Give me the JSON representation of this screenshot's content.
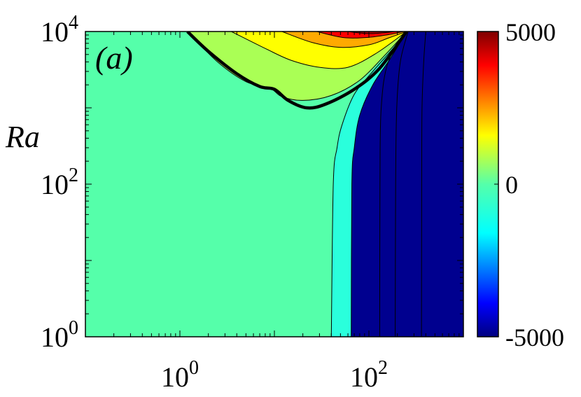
{
  "chart_data": {
    "type": "heatmap",
    "panel_label": "(a)",
    "xlabel": "",
    "ylabel": "Ra",
    "x_scale": "log",
    "y_scale": "log",
    "xlim": [
      0.1,
      1000
    ],
    "ylim": [
      1,
      10000
    ],
    "x_ticks": [
      {
        "value": 1,
        "base": "10",
        "exp": "0"
      },
      {
        "value": 100,
        "base": "10",
        "exp": "2"
      }
    ],
    "y_ticks": [
      {
        "value": 1,
        "base": "10",
        "exp": "0"
      },
      {
        "value": 100,
        "base": "10",
        "exp": "2"
      },
      {
        "value": 10000,
        "base": "10",
        "exp": "4"
      }
    ],
    "colorbar": {
      "colormap": "jet",
      "range": [
        -5000,
        5000
      ],
      "tick_labels": [
        {
          "value": 5000,
          "label": "5000"
        },
        {
          "value": 0,
          "label": "0"
        },
        {
          "value": -5000,
          "label": "-5000"
        }
      ]
    },
    "colors": {
      "background_level": "#55ffaa",
      "level_1": "#aaff55",
      "level_2": "#ffff00",
      "level_3": "#ffaa00",
      "level_4": "#ff0000",
      "level_5": "#aa0000",
      "neg_level_1": "#2affdc",
      "deep_negative": "#00008f"
    },
    "regions": [
      {
        "name": "yellow-green-band",
        "color": "level_1",
        "boundary": [
          [
            1.2,
            10000
          ],
          [
            2.5,
            4000
          ],
          [
            5,
            2200
          ],
          [
            9,
            1800
          ],
          [
            12,
            1400
          ],
          [
            20,
            1250
          ],
          [
            40,
            1450
          ],
          [
            80,
            2300
          ],
          [
            150,
            5000
          ],
          [
            250,
            10000
          ]
        ]
      },
      {
        "name": "yellow-band",
        "color": "level_2",
        "boundary": [
          [
            3.5,
            10000
          ],
          [
            8,
            6000
          ],
          [
            15,
            4200
          ],
          [
            30,
            3400
          ],
          [
            60,
            3400
          ],
          [
            120,
            5200
          ],
          [
            250,
            10000
          ]
        ]
      },
      {
        "name": "orange-band",
        "color": "level_3",
        "boundary": [
          [
            12,
            10000
          ],
          [
            25,
            7200
          ],
          [
            50,
            6200
          ],
          [
            100,
            6700
          ],
          [
            160,
            8200
          ],
          [
            250,
            10000
          ]
        ]
      },
      {
        "name": "red-band",
        "color": "level_4",
        "boundary": [
          [
            28,
            10000
          ],
          [
            55,
            8300
          ],
          [
            100,
            8400
          ],
          [
            170,
            9200
          ],
          [
            230,
            10000
          ]
        ]
      },
      {
        "name": "dark-red-core",
        "color": "level_5",
        "boundary": [
          [
            60,
            10000
          ],
          [
            95,
            9400
          ],
          [
            140,
            9600
          ],
          [
            190,
            10000
          ]
        ]
      }
    ],
    "bands": [
      {
        "name": "cyan-band",
        "color": "neg_level_1",
        "boundary": [
          [
            40,
            1
          ],
          [
            42,
            100
          ],
          [
            46,
            300
          ],
          [
            52,
            600
          ],
          [
            70,
            1500
          ],
          [
            110,
            3000
          ],
          [
            180,
            6000
          ],
          [
            250,
            10000
          ]
        ]
      },
      {
        "name": "deep-blue-region",
        "color": "deep_negative",
        "boundary": [
          [
            65,
            1
          ],
          [
            66,
            100
          ],
          [
            70,
            300
          ],
          [
            80,
            800
          ],
          [
            110,
            2000
          ],
          [
            170,
            4500
          ],
          [
            250,
            10000
          ]
        ]
      }
    ],
    "neutral_curve": [
      [
        1.2,
        10000
      ],
      [
        2,
        5500
      ],
      [
        4,
        2800
      ],
      [
        7,
        1900
      ],
      [
        10,
        1750
      ],
      [
        14,
        1250
      ],
      [
        22,
        1000
      ],
      [
        35,
        1120
      ],
      [
        70,
        1750
      ],
      [
        130,
        3300
      ],
      [
        250,
        10000
      ]
    ],
    "blue_contours": [
      [
        [
          130,
          1
        ],
        [
          131,
          100
        ],
        [
          135,
          1000
        ],
        [
          160,
          4000
        ],
        [
          250,
          10000
        ]
      ],
      [
        [
          190,
          1
        ],
        [
          192,
          100
        ],
        [
          197,
          1000
        ],
        [
          215,
          4000
        ],
        [
          260,
          10000
        ]
      ],
      [
        [
          360,
          1
        ],
        [
          362,
          100
        ],
        [
          365,
          1000
        ],
        [
          380,
          4000
        ],
        [
          400,
          10000
        ]
      ]
    ]
  }
}
